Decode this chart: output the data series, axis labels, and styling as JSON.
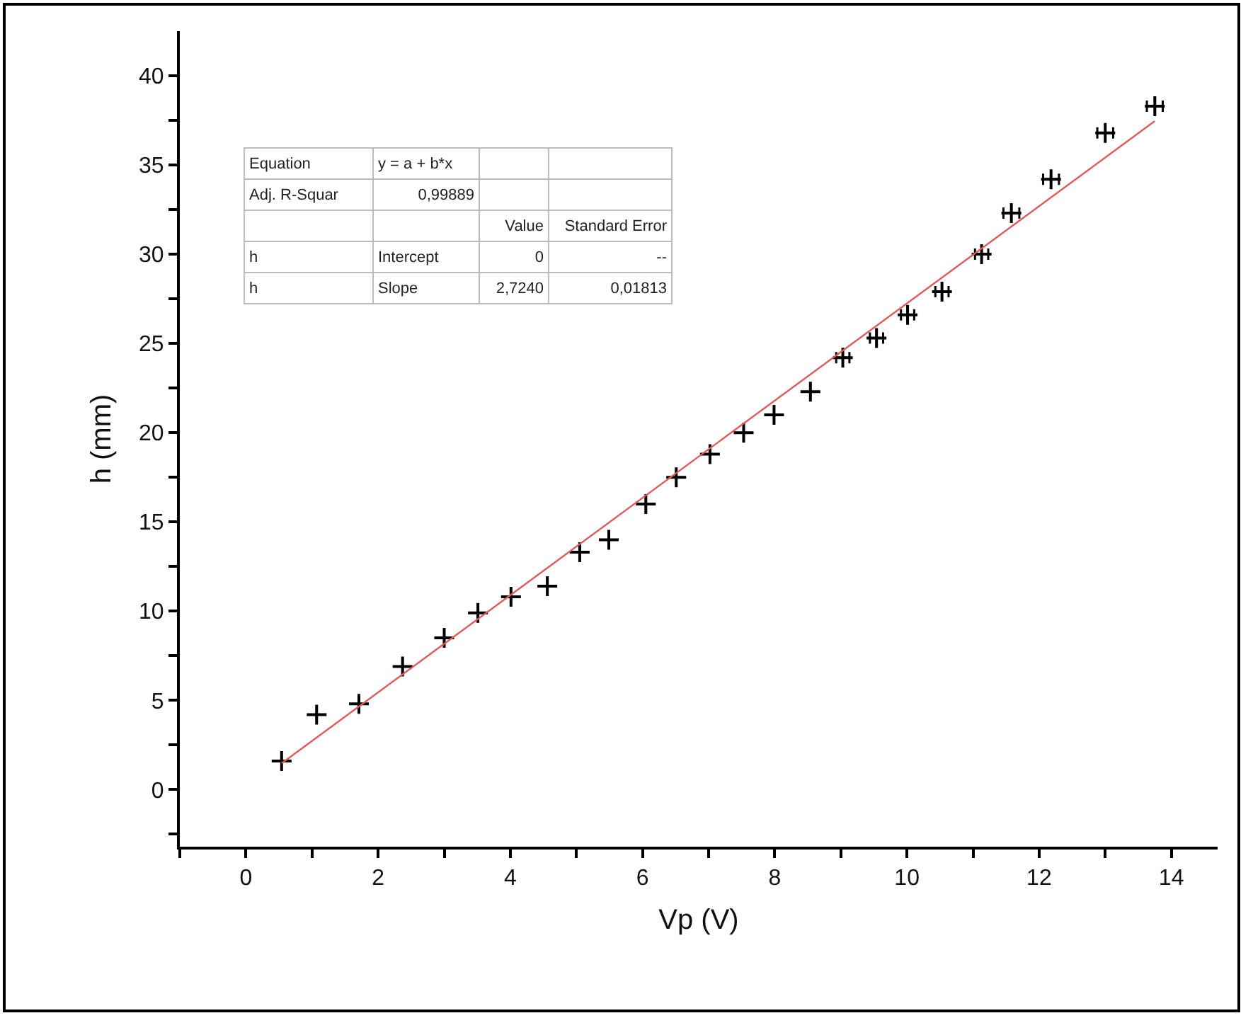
{
  "chart_data": {
    "type": "scatter",
    "xlabel": "Vp (V)",
    "ylabel": "h (mm)",
    "xlim": [
      -1,
      14.7
    ],
    "ylim": [
      -3.2,
      42.5
    ],
    "xticks": [
      {
        "value": -1,
        "label": null
      },
      0,
      {
        "value": 1,
        "label": null
      },
      2,
      {
        "value": 3,
        "label": null
      },
      4,
      {
        "value": 5,
        "label": null
      },
      6,
      {
        "value": 7,
        "label": null
      },
      8,
      {
        "value": 9,
        "label": null
      },
      10,
      {
        "value": 11,
        "label": null
      },
      12,
      {
        "value": 13,
        "label": null
      },
      14
    ],
    "yticks": [
      {
        "value": -2.5,
        "label": null
      },
      0,
      {
        "value": 2.5,
        "label": null
      },
      5,
      {
        "value": 7.5,
        "label": null
      },
      10,
      {
        "value": 12.5,
        "label": null
      },
      15,
      {
        "value": 17.5,
        "label": null
      },
      20,
      {
        "value": 22.5,
        "label": null
      },
      25,
      {
        "value": 27.5,
        "label": null
      },
      30,
      {
        "value": 32.5,
        "label": null
      },
      35,
      {
        "value": 37.5,
        "label": null
      },
      40
    ],
    "grid": false,
    "legend": false,
    "marker": "cross",
    "series": [
      {
        "color": "#000000",
        "x": [
          0.54,
          1.07,
          1.71,
          2.37,
          3.0,
          3.51,
          4.01,
          4.56,
          5.05,
          5.49,
          6.05,
          6.51,
          7.02,
          7.53,
          7.99,
          8.54,
          9.03,
          9.54,
          10.01,
          10.53,
          11.13,
          11.58,
          12.18,
          13.0,
          13.75
        ],
        "values": [
          1.6,
          4.2,
          4.8,
          6.9,
          8.5,
          9.9,
          10.8,
          11.4,
          13.3,
          14.0,
          16.0,
          17.5,
          18.8,
          20.0,
          21.0,
          22.3,
          24.2,
          25.3,
          26.6,
          27.9,
          30.0,
          32.3,
          34.2,
          36.8,
          38.3
        ],
        "xerrors": [
          null,
          null,
          null,
          null,
          null,
          null,
          null,
          null,
          null,
          null,
          null,
          null,
          null,
          null,
          null,
          null,
          0.1,
          0.1,
          0.1,
          0.1,
          0.1,
          0.12,
          0.12,
          0.12,
          0.12
        ]
      },
      {
        "type": "line",
        "color": "#e05a5a",
        "marker": "none",
        "x": [
          0.54,
          13.75
        ],
        "values": [
          1.47,
          37.46
        ]
      }
    ],
    "annotations": [
      "Equation",
      "y = a + b*x",
      "Adj. R-Squar",
      "0,99889",
      "Value",
      "Standard Error",
      "h",
      "Intercept",
      "0",
      "--",
      "h",
      "Slope",
      "2,7240",
      "0,01813"
    ]
  }
}
